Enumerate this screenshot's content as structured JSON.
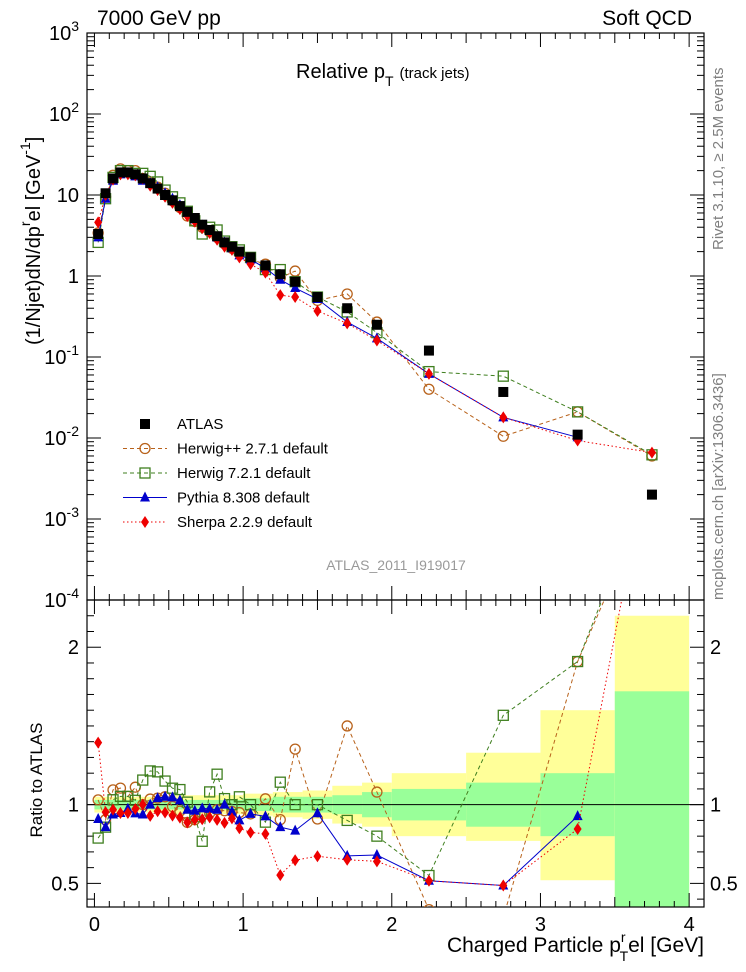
{
  "header": {
    "left": "7000 GeV pp",
    "right": "Soft QCD"
  },
  "side_labels": {
    "rivet": "Rivet 3.1.10, ≥ 2.5M events",
    "mcplots": "mcplots.cern.ch [arXiv:1306.3436]"
  },
  "analysis_id": "ATLAS_2011_I919017",
  "colors": {
    "atlas": "#000000",
    "herwigpp": "#b8621b",
    "herwig7": "#3f7f1f",
    "pythia": "#0000cc",
    "sherpa": "#ee0000",
    "band_inner": "#99ff99",
    "band_outer": "#ffff99"
  },
  "chart_data": [
    {
      "type": "scatter",
      "title": "Relative p_T (track jets)",
      "title_main": "Relative p",
      "title_sub": "T",
      "title_paren": "(track jets)",
      "xlabel": "",
      "ylabel": "(1/Njet)dN/dp_T^rel [GeV^-1]",
      "ylabel_main": "(1/Njet)dN/dp",
      "ylabel_sup": "r",
      "ylabel_rest": "el [GeV",
      "ylabel_sup2": "-1",
      "ylabel_end": "]",
      "ylog": true,
      "ylim": [
        0.0001,
        1000
      ],
      "xlim": [
        -0.05,
        4.1
      ],
      "legend_position": "lower-left",
      "ytick_labels": [
        {
          "v": 0.0001,
          "base": "10",
          "exp": "-4"
        },
        {
          "v": 0.001,
          "base": "10",
          "exp": "-3"
        },
        {
          "v": 0.01,
          "base": "10",
          "exp": "-2"
        },
        {
          "v": 0.1,
          "base": "10",
          "exp": "-1"
        },
        {
          "v": 1,
          "base": "1",
          "exp": ""
        },
        {
          "v": 10,
          "base": "10",
          "exp": ""
        },
        {
          "v": 100,
          "base": "10",
          "exp": "2"
        },
        {
          "v": 1000,
          "base": "10",
          "exp": "3"
        }
      ],
      "series": [
        {
          "name": "ATLAS",
          "key": "atlas",
          "marker": "filled-square",
          "x": [
            0.025,
            0.075,
            0.125,
            0.175,
            0.225,
            0.275,
            0.325,
            0.375,
            0.425,
            0.475,
            0.525,
            0.575,
            0.625,
            0.675,
            0.725,
            0.775,
            0.825,
            0.875,
            0.925,
            0.975,
            1.05,
            1.15,
            1.25,
            1.35,
            1.5,
            1.7,
            1.9,
            2.25,
            2.75,
            3.25,
            3.75
          ],
          "y": [
            3.3,
            10.5,
            16.0,
            19.0,
            19.0,
            18.0,
            16.0,
            14.0,
            12.0,
            10.0,
            8.6,
            7.3,
            6.2,
            5.2,
            4.3,
            3.7,
            3.1,
            2.6,
            2.3,
            2.0,
            1.7,
            1.35,
            1.05,
            0.85,
            0.55,
            0.4,
            0.25,
            0.12,
            0.037,
            0.011,
            0.002
          ]
        },
        {
          "name": "Herwig++ 2.7.1 default",
          "key": "herwigpp",
          "marker": "open-circle",
          "line": "dashed",
          "x": [
            0.025,
            0.075,
            0.125,
            0.175,
            0.225,
            0.275,
            0.325,
            0.375,
            0.425,
            0.475,
            0.525,
            0.575,
            0.625,
            0.675,
            0.725,
            0.775,
            0.825,
            0.875,
            0.925,
            0.975,
            1.05,
            1.15,
            1.25,
            1.35,
            1.5,
            1.7,
            1.9,
            2.25,
            2.75,
            3.25,
            3.75
          ],
          "y": [
            3.4,
            9.5,
            17.5,
            21.0,
            20.0,
            20.0,
            16.0,
            14.5,
            12.5,
            10.5,
            8.5,
            7.0,
            5.5,
            4.7,
            4.0,
            3.5,
            3.0,
            2.5,
            2.2,
            1.9,
            1.6,
            1.4,
            0.95,
            1.15,
            0.5,
            0.6,
            0.27,
            0.04,
            0.0105,
            0.021,
            0.006
          ]
        },
        {
          "name": "Herwig 7.2.1 default",
          "key": "herwig7",
          "marker": "open-square",
          "line": "dashed",
          "x": [
            0.025,
            0.075,
            0.125,
            0.175,
            0.225,
            0.275,
            0.325,
            0.375,
            0.425,
            0.475,
            0.525,
            0.575,
            0.625,
            0.675,
            0.725,
            0.775,
            0.825,
            0.875,
            0.925,
            0.975,
            1.05,
            1.15,
            1.25,
            1.35,
            1.5,
            1.7,
            1.9,
            2.25,
            2.75,
            3.25,
            3.75
          ],
          "y": [
            2.6,
            9.0,
            16.5,
            20.0,
            20.0,
            18.5,
            18.5,
            17.0,
            14.5,
            11.5,
            9.5,
            8.0,
            6.3,
            4.8,
            3.3,
            4.0,
            3.7,
            2.7,
            2.3,
            2.1,
            1.7,
            1.2,
            1.2,
            0.85,
            0.55,
            0.36,
            0.2,
            0.066,
            0.058,
            0.021,
            0.0062
          ]
        },
        {
          "name": "Pythia 8.308 default",
          "key": "pythia",
          "marker": "filled-triangle",
          "line": "solid",
          "x": [
            0.025,
            0.075,
            0.125,
            0.175,
            0.225,
            0.275,
            0.325,
            0.375,
            0.425,
            0.475,
            0.525,
            0.575,
            0.625,
            0.675,
            0.725,
            0.775,
            0.825,
            0.875,
            0.925,
            0.975,
            1.05,
            1.15,
            1.25,
            1.35,
            1.5,
            1.7,
            1.9,
            2.25,
            2.75,
            3.25,
            3.75
          ],
          "y": [
            3.0,
            9.0,
            15.0,
            18.0,
            18.5,
            17.0,
            15.0,
            14.0,
            12.5,
            10.5,
            9.0,
            7.5,
            6.0,
            5.0,
            4.2,
            3.6,
            3.0,
            2.6,
            2.2,
            1.8,
            1.6,
            1.25,
            0.9,
            0.71,
            0.52,
            0.27,
            0.17,
            0.062,
            0.018,
            0.0102,
            null
          ]
        },
        {
          "name": "Sherpa 2.2.9 default",
          "key": "sherpa",
          "marker": "filled-diamond",
          "line": "dotted",
          "x": [
            0.025,
            0.075,
            0.125,
            0.175,
            0.225,
            0.275,
            0.325,
            0.375,
            0.425,
            0.475,
            0.525,
            0.575,
            0.625,
            0.675,
            0.725,
            0.775,
            0.825,
            0.875,
            0.925,
            0.975,
            1.05,
            1.15,
            1.25,
            1.35,
            1.5,
            1.7,
            1.9,
            2.25,
            2.75,
            3.25,
            3.75
          ],
          "y": [
            4.6,
            10.0,
            15.5,
            18.0,
            18.0,
            17.5,
            16.0,
            13.0,
            11.5,
            9.5,
            8.0,
            6.7,
            5.5,
            4.7,
            3.9,
            3.4,
            2.8,
            2.3,
            2.1,
            1.7,
            1.4,
            1.1,
            0.58,
            0.55,
            0.37,
            0.26,
            0.16,
            0.062,
            0.018,
            0.0093,
            0.0066
          ]
        }
      ]
    },
    {
      "type": "scatter",
      "title": "",
      "xlabel": "Charged Particle p_T^rel [GeV]",
      "xlabel_main": "Charged Particle p",
      "xlabel_sup": "r",
      "xlabel_sub": "T",
      "xlabel_rest": "el [GeV]",
      "ylabel": "Ratio to ATLAS",
      "ylim": [
        0.35,
        2.3
      ],
      "xlim": [
        -0.05,
        4.1
      ],
      "xtick_labels": [
        "0",
        "1",
        "2",
        "3",
        "4"
      ],
      "ytick_labels": [
        "0.5",
        "1",
        "2"
      ],
      "uncertainty_bands": {
        "x_edges": [
          0.0,
          0.5,
          1.0,
          1.2,
          1.4,
          1.6,
          1.8,
          2.0,
          2.5,
          3.0,
          3.5,
          4.0
        ],
        "inner": [
          [
            0.97,
            1.03
          ],
          [
            0.97,
            1.03
          ],
          [
            0.96,
            1.04
          ],
          [
            0.95,
            1.05
          ],
          [
            0.95,
            1.05
          ],
          [
            0.94,
            1.06
          ],
          [
            0.92,
            1.08
          ],
          [
            0.9,
            1.1
          ],
          [
            0.86,
            1.14
          ],
          [
            0.8,
            1.2
          ],
          [
            0.35,
            1.72
          ]
        ],
        "outer": [
          [
            0.95,
            1.05
          ],
          [
            0.94,
            1.06
          ],
          [
            0.93,
            1.07
          ],
          [
            0.92,
            1.08
          ],
          [
            0.91,
            1.09
          ],
          [
            0.88,
            1.12
          ],
          [
            0.86,
            1.14
          ],
          [
            0.8,
            1.2
          ],
          [
            0.77,
            1.33
          ],
          [
            0.52,
            1.6
          ],
          [
            0.35,
            2.2
          ]
        ]
      }
    }
  ]
}
